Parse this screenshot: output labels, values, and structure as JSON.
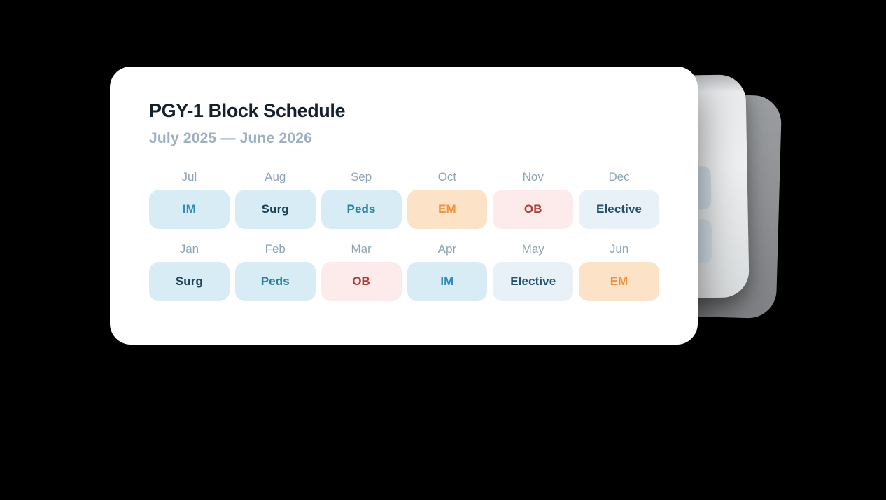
{
  "window": {
    "title": "PGY-1 Block Schedule",
    "subtitle": "July 2025 — June 2026"
  },
  "schedule": {
    "months": [
      {
        "month": "Jul",
        "block": "IM",
        "type": "im"
      },
      {
        "month": "Aug",
        "block": "Surg",
        "type": "surg"
      },
      {
        "month": "Sep",
        "block": "Peds",
        "type": "peds"
      },
      {
        "month": "Oct",
        "block": "EM",
        "type": "em"
      },
      {
        "month": "Nov",
        "block": "OB",
        "type": "ob"
      },
      {
        "month": "Dec",
        "block": "Elective",
        "type": "elective"
      },
      {
        "month": "Jan",
        "block": "Surg",
        "type": "surg"
      },
      {
        "month": "Feb",
        "block": "Peds",
        "type": "peds"
      },
      {
        "month": "Mar",
        "block": "OB",
        "type": "ob"
      },
      {
        "month": "Apr",
        "block": "IM",
        "type": "im"
      },
      {
        "month": "May",
        "block": "Elective",
        "type": "elective"
      },
      {
        "month": "Jun",
        "block": "EM",
        "type": "em"
      }
    ]
  },
  "palette": {
    "im": {
      "bg": "#d8ecf6",
      "fg": "#2f8cb5"
    },
    "surg": {
      "bg": "#d8ecf6",
      "fg": "#1c4258"
    },
    "peds": {
      "bg": "#d8ecf6",
      "fg": "#27809f"
    },
    "em": {
      "bg": "#fce3c8",
      "fg": "#f0913f"
    },
    "ob": {
      "bg": "#fcebea",
      "fg": "#b23a31"
    },
    "elective": {
      "bg": "#e8f1f7",
      "fg": "#24506e"
    }
  },
  "colors": {
    "page_background": "#000000",
    "card_background": "#ffffff",
    "title_text": "#14202c",
    "subtitle_text": "#9bb0c2",
    "month_label_text": "#8da4b4",
    "stack_card_mid": "#e4e6e8",
    "stack_card_back": "#8d8f92"
  }
}
